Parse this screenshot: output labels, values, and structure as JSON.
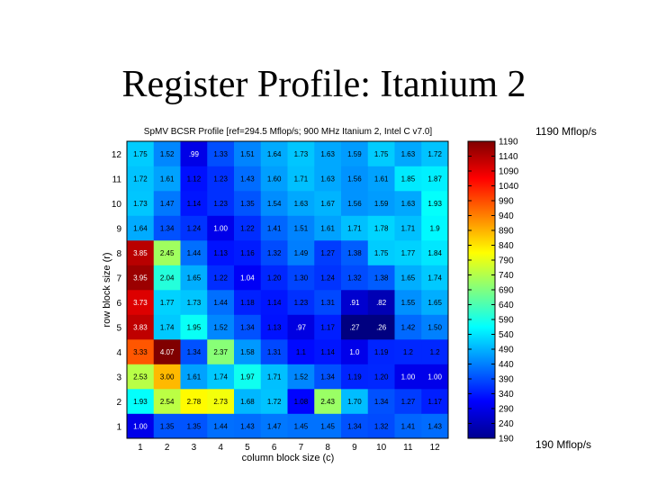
{
  "slide": {
    "title": "Register Profile: Itanium 2",
    "annotation_top": "1190 Mflop/s",
    "annotation_bottom": "190 Mflop/s"
  },
  "chart_data": {
    "type": "heatmap",
    "title": "SpMV BCSR Profile [ref=294.5 Mflop/s; 900 MHz Itanium 2, Intel C v7.0]",
    "xlabel": "column block size (c)",
    "ylabel": "row block size (r)",
    "x": [
      1,
      2,
      3,
      4,
      5,
      6,
      7,
      8,
      9,
      10,
      11,
      12
    ],
    "y": [
      1,
      2,
      3,
      4,
      5,
      6,
      7,
      8,
      9,
      10,
      11,
      12
    ],
    "values": [
      [
        "1.00",
        "1.35",
        "1.35",
        "1.44",
        "1.43",
        "1.47",
        "1.45",
        "1.45",
        "1.34",
        "1.32",
        "1.41",
        "1.43"
      ],
      [
        "1.93",
        "2.54",
        "2.78",
        "2.73",
        "1.68",
        "1.72",
        "1.08",
        "2.43",
        "1.70",
        "1.34",
        "1.27",
        "1.17"
      ],
      [
        "2.53",
        "3.00",
        "1.61",
        "1.74",
        "1.97",
        "1.71",
        "1.52",
        "1.34",
        "1.19",
        "1.20",
        "1.00",
        "1.00"
      ],
      [
        "3.33",
        "4.07",
        "1.34",
        "2.37",
        "1.58",
        "1.31",
        "1.1",
        "1.14",
        "1.0",
        "1.19",
        "1.2",
        "1.2"
      ],
      [
        "3.83",
        "1.74",
        "1.95",
        "1.52",
        "1.34",
        "1.13",
        ".97",
        "1.17",
        ".27",
        ".26",
        "1.42",
        "1.50"
      ],
      [
        "3.73",
        "1.77",
        "1.73",
        "1.44",
        "1.18",
        "1.14",
        "1.23",
        "1.31",
        ".91",
        ".82",
        "1.55",
        "1.65"
      ],
      [
        "3.95",
        "2.04",
        "1.65",
        "1.22",
        "1.04",
        "1.20",
        "1.30",
        "1.24",
        "1.32",
        "1.38",
        "1.65",
        "1.74"
      ],
      [
        "3.85",
        "2.45",
        "1.44",
        "1.13",
        "1.16",
        "1.32",
        "1.49",
        "1.27",
        "1.38",
        "1.75",
        "1.77",
        "1.84"
      ],
      [
        "1.64",
        "1.34",
        "1.24",
        "1.00",
        "1.22",
        "1.41",
        "1.51",
        "1.61",
        "1.71",
        "1.78",
        "1.71",
        "1.9"
      ],
      [
        "1.73",
        "1.47",
        "1.14",
        "1.23",
        "1.35",
        "1.54",
        "1.63",
        "1.67",
        "1.56",
        "1.59",
        "1.63",
        "1.93"
      ],
      [
        "1.72",
        "1.61",
        "1.12",
        "1.23",
        "1.43",
        "1.60",
        "1.71",
        "1.63",
        "1.56",
        "1.61",
        "1.85",
        "1.87"
      ],
      [
        "1.75",
        "1.52",
        ".99",
        "1.33",
        "1.51",
        "1.64",
        "1.73",
        "1.63",
        "1.59",
        "1.75",
        "1.63",
        "1.72"
      ]
    ],
    "colorbar": {
      "min": 190,
      "max": 1190,
      "ticks": [
        190,
        240,
        290,
        340,
        390,
        440,
        490,
        540,
        590,
        640,
        690,
        740,
        790,
        840,
        890,
        940,
        990,
        1040,
        1090,
        1140,
        1190
      ]
    }
  }
}
